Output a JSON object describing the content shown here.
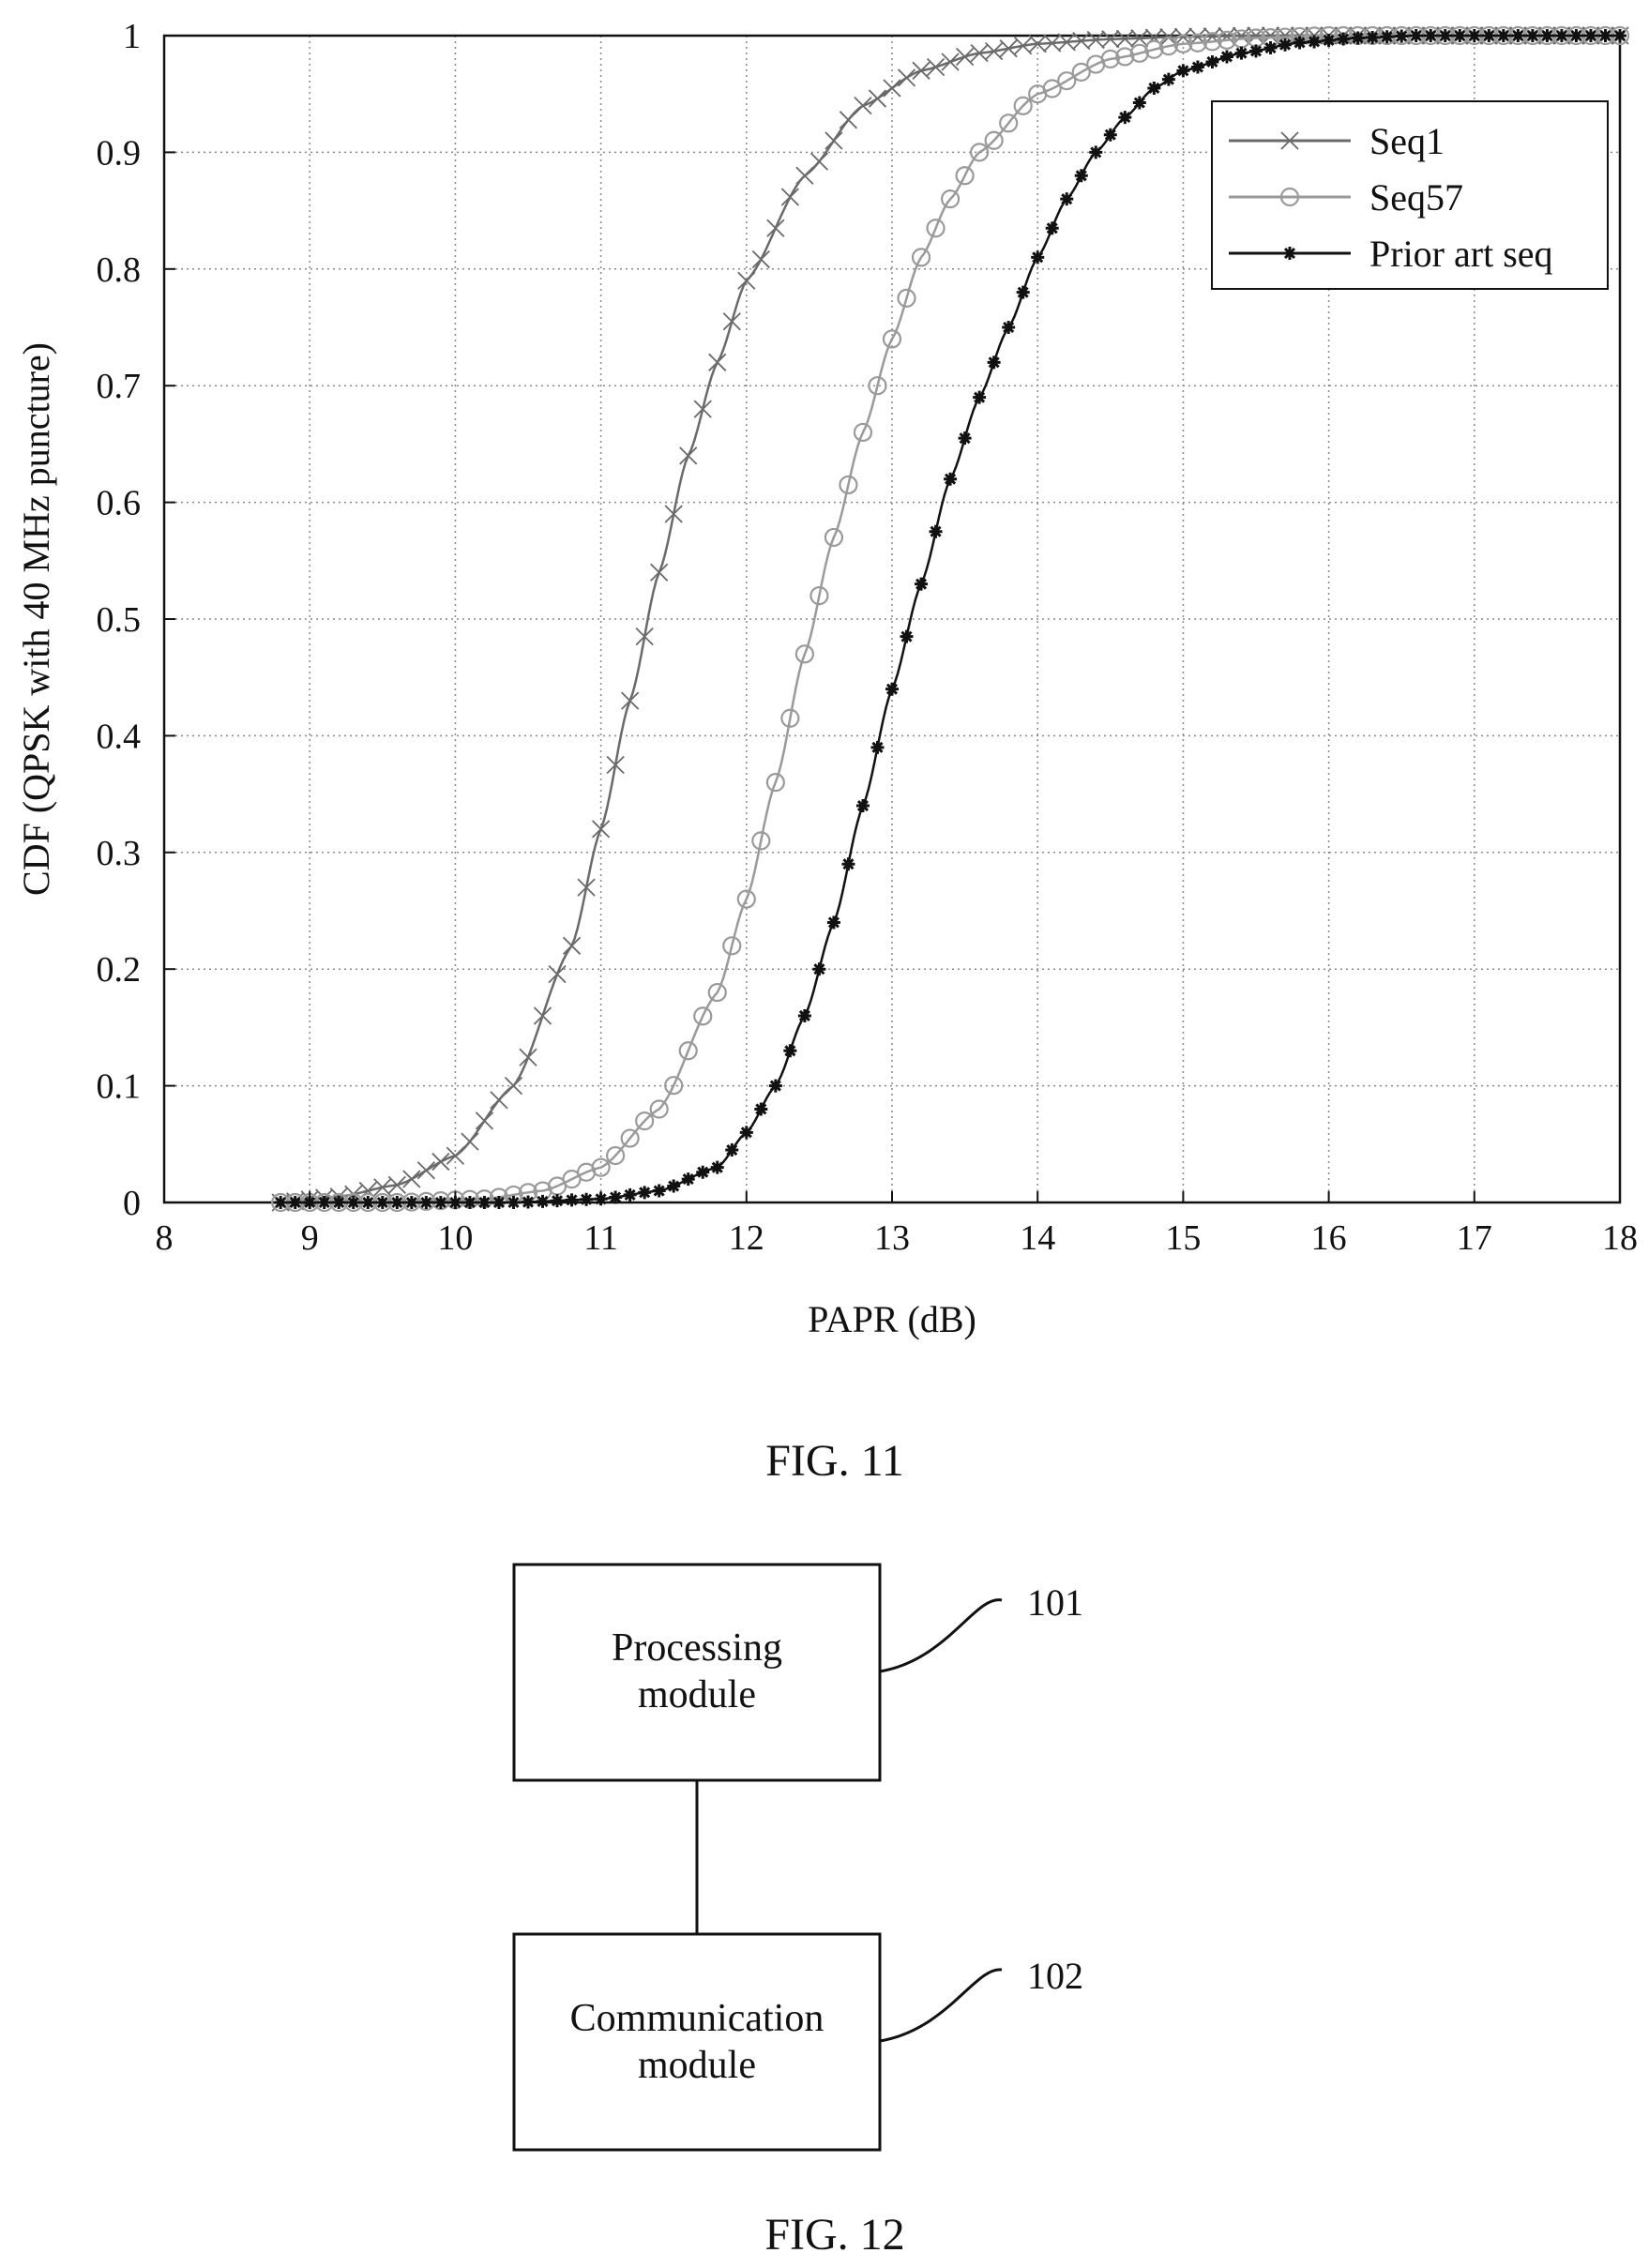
{
  "chart_data": {
    "type": "line",
    "title": "",
    "xlabel": "PAPR (dB)",
    "ylabel": "CDF (QPSK with 40 MHz puncture)",
    "xlim": [
      8,
      18
    ],
    "ylim": [
      0,
      1
    ],
    "xticks": [
      "8",
      "9",
      "10",
      "11",
      "12",
      "13",
      "14",
      "15",
      "16",
      "17",
      "18"
    ],
    "yticks": [
      "0",
      "0.1",
      "0.2",
      "0.3",
      "0.4",
      "0.5",
      "0.6",
      "0.7",
      "0.8",
      "0.9",
      "1"
    ],
    "grid": true,
    "legend_position": "top-right",
    "series": [
      {
        "name": "Seq1",
        "marker": "cross",
        "color": "#6a6a6a",
        "x": [
          8.8,
          9.2,
          9.6,
          10.0,
          10.4,
          10.8,
          11.0,
          11.2,
          11.4,
          11.6,
          11.8,
          12.0,
          12.4,
          12.8,
          13.2,
          13.6,
          14.0,
          14.5,
          15.0,
          15.5,
          16.0,
          17.0,
          18.0
        ],
        "y": [
          0.0,
          0.005,
          0.015,
          0.04,
          0.1,
          0.22,
          0.32,
          0.43,
          0.54,
          0.64,
          0.72,
          0.79,
          0.88,
          0.94,
          0.97,
          0.985,
          0.993,
          0.997,
          0.999,
          1.0,
          1.0,
          1.0,
          1.0
        ]
      },
      {
        "name": "Seq57",
        "marker": "circle",
        "color": "#9a9a9a",
        "x": [
          8.8,
          9.6,
          10.2,
          10.6,
          11.0,
          11.4,
          11.8,
          12.0,
          12.2,
          12.4,
          12.6,
          12.8,
          13.0,
          13.2,
          13.4,
          13.6,
          14.0,
          14.5,
          15.0,
          15.5,
          16.0,
          17.0,
          18.0
        ],
        "y": [
          0.0,
          0.0,
          0.003,
          0.01,
          0.03,
          0.08,
          0.18,
          0.26,
          0.36,
          0.47,
          0.57,
          0.66,
          0.74,
          0.81,
          0.86,
          0.9,
          0.95,
          0.98,
          0.993,
          0.998,
          1.0,
          1.0,
          1.0
        ]
      },
      {
        "name": "Prior art seq",
        "marker": "star",
        "color": "#111111",
        "x": [
          8.8,
          9.6,
          10.4,
          11.0,
          11.4,
          11.8,
          12.0,
          12.2,
          12.4,
          12.6,
          12.8,
          13.0,
          13.2,
          13.4,
          13.6,
          13.8,
          14.0,
          14.2,
          14.4,
          14.6,
          14.8,
          15.0,
          15.4,
          15.8,
          16.2,
          16.6,
          17.0,
          18.0
        ],
        "y": [
          0.0,
          0.0,
          0.0,
          0.003,
          0.01,
          0.03,
          0.06,
          0.1,
          0.16,
          0.24,
          0.34,
          0.44,
          0.53,
          0.62,
          0.69,
          0.75,
          0.81,
          0.86,
          0.9,
          0.93,
          0.955,
          0.97,
          0.985,
          0.994,
          0.998,
          1.0,
          1.0,
          1.0
        ]
      }
    ]
  },
  "figure11": {
    "caption": "FIG. 11"
  },
  "figure12": {
    "caption": "FIG. 12",
    "boxes": [
      {
        "label_line1": "Processing",
        "label_line2": "module",
        "ref": "101"
      },
      {
        "label_line1": "Communication",
        "label_line2": "module",
        "ref": "102"
      }
    ]
  }
}
